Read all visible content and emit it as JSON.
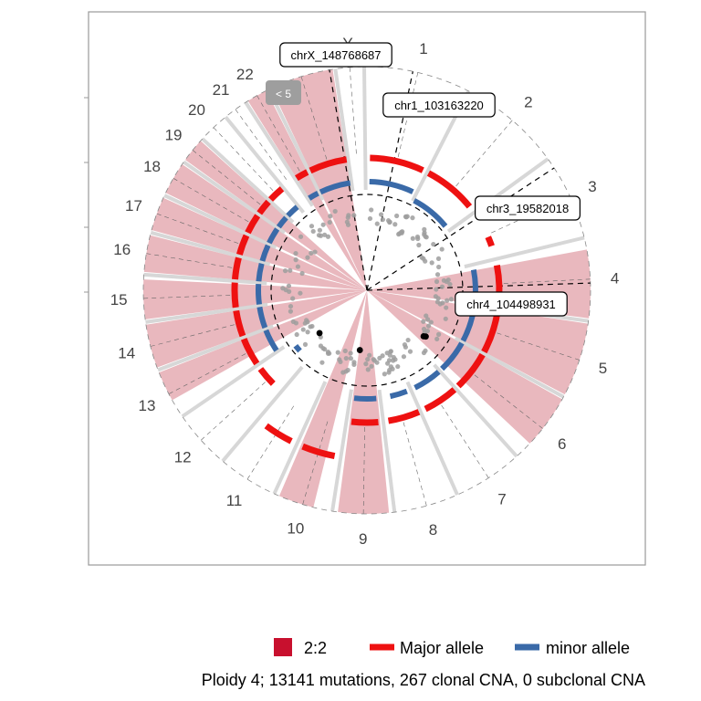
{
  "chart_data": {
    "type": "circos",
    "colors": {
      "segment_2_2": "#e8b4bb",
      "segment_2_2_legend": "#c8102e",
      "major_allele": "#ee1111",
      "minor_allele": "#3a6aa8",
      "mutation_dot": "#9e9e9e",
      "highlight_dot": "#000000",
      "gap": "#d3d3d3",
      "frame": "#9a9a9a"
    },
    "chromosomes": [
      "1",
      "2",
      "3",
      "4",
      "5",
      "6",
      "7",
      "8",
      "9",
      "10",
      "11",
      "12",
      "13",
      "14",
      "15",
      "16",
      "17",
      "18",
      "19",
      "20",
      "21",
      "22",
      "X",
      "Y"
    ],
    "chromosome_lengths_mb": [
      249,
      242,
      198,
      190,
      181,
      171,
      159,
      145,
      138,
      134,
      135,
      133,
      114,
      107,
      102,
      90,
      83,
      80,
      59,
      64,
      47,
      51,
      156,
      57
    ],
    "segments_2_2": [
      {
        "chr": "4",
        "from": 0.12,
        "to": 1.0
      },
      {
        "chr": "5",
        "from": 0.0,
        "to": 1.0
      },
      {
        "chr": "6",
        "from": 0.0,
        "to": 0.78
      },
      {
        "chr": "9",
        "from": 0.05,
        "to": 0.95
      },
      {
        "chr": "10",
        "from": 0.3,
        "to": 0.95
      },
      {
        "chr": "13",
        "from": 0.35,
        "to": 1.0
      },
      {
        "chr": "14",
        "from": 0.0,
        "to": 1.0
      },
      {
        "chr": "15",
        "from": 0.0,
        "to": 0.95
      },
      {
        "chr": "16",
        "from": 0.0,
        "to": 1.0
      },
      {
        "chr": "17",
        "from": 0.0,
        "to": 1.0
      },
      {
        "chr": "18",
        "from": 0.0,
        "to": 1.0
      },
      {
        "chr": "19",
        "from": 0.0,
        "to": 1.0
      },
      {
        "chr": "22",
        "from": 0.0,
        "to": 1.0
      },
      {
        "chr": "X",
        "from": 0.0,
        "to": 1.0
      }
    ],
    "major_allele_segments": [
      {
        "chr": "1",
        "from": 0.05,
        "to": 0.95,
        "level": 2
      },
      {
        "chr": "2",
        "from": 0.0,
        "to": 0.9,
        "level": 2
      },
      {
        "chr": "3",
        "from": 0.55,
        "to": 0.75,
        "level": 2
      },
      {
        "chr": "4",
        "from": 0.1,
        "to": 1.0,
        "level": 2
      },
      {
        "chr": "5",
        "from": 0.0,
        "to": 1.0,
        "level": 2
      },
      {
        "chr": "6",
        "from": 0.0,
        "to": 0.95,
        "level": 2
      },
      {
        "chr": "7",
        "from": 0.0,
        "to": 0.9,
        "level": 2
      },
      {
        "chr": "8",
        "from": 0.0,
        "to": 0.9,
        "level": 2
      },
      {
        "chr": "9",
        "from": 0.1,
        "to": 0.9,
        "level": 2
      },
      {
        "chr": "10",
        "from": 0.1,
        "to": 0.9,
        "level": 3
      },
      {
        "chr": "11",
        "from": 0.1,
        "to": 0.8,
        "level": 3
      },
      {
        "chr": "12",
        "from": 0.3,
        "to": 0.9,
        "level": 2
      },
      {
        "chr": "13",
        "from": 0.0,
        "to": 1.0,
        "level": 2
      },
      {
        "chr": "14",
        "from": 0.0,
        "to": 1.0,
        "level": 2
      },
      {
        "chr": "15",
        "from": 0.0,
        "to": 1.0,
        "level": 2
      },
      {
        "chr": "16",
        "from": 0.0,
        "to": 1.0,
        "level": 2
      },
      {
        "chr": "17",
        "from": 0.0,
        "to": 1.0,
        "level": 2
      },
      {
        "chr": "18",
        "from": 0.0,
        "to": 1.0,
        "level": 2
      },
      {
        "chr": "19",
        "from": 0.0,
        "to": 1.0,
        "level": 2
      },
      {
        "chr": "20",
        "from": 0.0,
        "to": 1.0,
        "level": 2
      },
      {
        "chr": "22",
        "from": 0.0,
        "to": 1.0,
        "level": 2
      },
      {
        "chr": "X",
        "from": 0.0,
        "to": 1.0,
        "level": 2
      }
    ],
    "minor_allele_segments": [
      {
        "chr": "1",
        "from": 0.05,
        "to": 0.95,
        "level": 1.5
      },
      {
        "chr": "2",
        "from": 0.0,
        "to": 0.9,
        "level": 1.3
      },
      {
        "chr": "4",
        "from": 0.1,
        "to": 1.0,
        "level": 1.5
      },
      {
        "chr": "5",
        "from": 0.0,
        "to": 1.0,
        "level": 1.5
      },
      {
        "chr": "6",
        "from": 0.0,
        "to": 0.95,
        "level": 1.5
      },
      {
        "chr": "7",
        "from": 0.0,
        "to": 0.9,
        "level": 1.5
      },
      {
        "chr": "8",
        "from": 0.1,
        "to": 0.7,
        "level": 1.5
      },
      {
        "chr": "9",
        "from": 0.1,
        "to": 0.9,
        "level": 1.5
      },
      {
        "chr": "12",
        "from": 0.5,
        "to": 0.8,
        "level": 1.0
      },
      {
        "chr": "13",
        "from": 0.0,
        "to": 1.0,
        "level": 1.5
      },
      {
        "chr": "14",
        "from": 0.0,
        "to": 1.0,
        "level": 1.5
      },
      {
        "chr": "15",
        "from": 0.0,
        "to": 1.0,
        "level": 1.5
      },
      {
        "chr": "16",
        "from": 0.0,
        "to": 1.0,
        "level": 1.5
      },
      {
        "chr": "17",
        "from": 0.0,
        "to": 1.0,
        "level": 1.5
      },
      {
        "chr": "18",
        "from": 0.0,
        "to": 1.0,
        "level": 1.5
      },
      {
        "chr": "19",
        "from": 0.0,
        "to": 1.0,
        "level": 1.5
      },
      {
        "chr": "20",
        "from": 0.0,
        "to": 1.0,
        "level": 1.5
      },
      {
        "chr": "22",
        "from": 0.0,
        "to": 1.0,
        "level": 1.5
      },
      {
        "chr": "X",
        "from": 0.0,
        "to": 1.0,
        "level": 1.5
      }
    ],
    "annotations": [
      {
        "label": "chrX_148768687"
      },
      {
        "label": "chr1_103163220"
      },
      {
        "label": "chr3_19582018"
      },
      {
        "label": "chr4_104498931"
      }
    ],
    "low_count_badge": "< 5",
    "legend": [
      {
        "label": "2:2",
        "kind": "box"
      },
      {
        "label": "Major allele",
        "kind": "line"
      },
      {
        "label": "minor allele",
        "kind": "line"
      }
    ],
    "caption": "Ploidy 4; 13141 mutations, 267 clonal CNA, 0 subclonal CNA",
    "legend_position": "bottom",
    "grid": false
  }
}
